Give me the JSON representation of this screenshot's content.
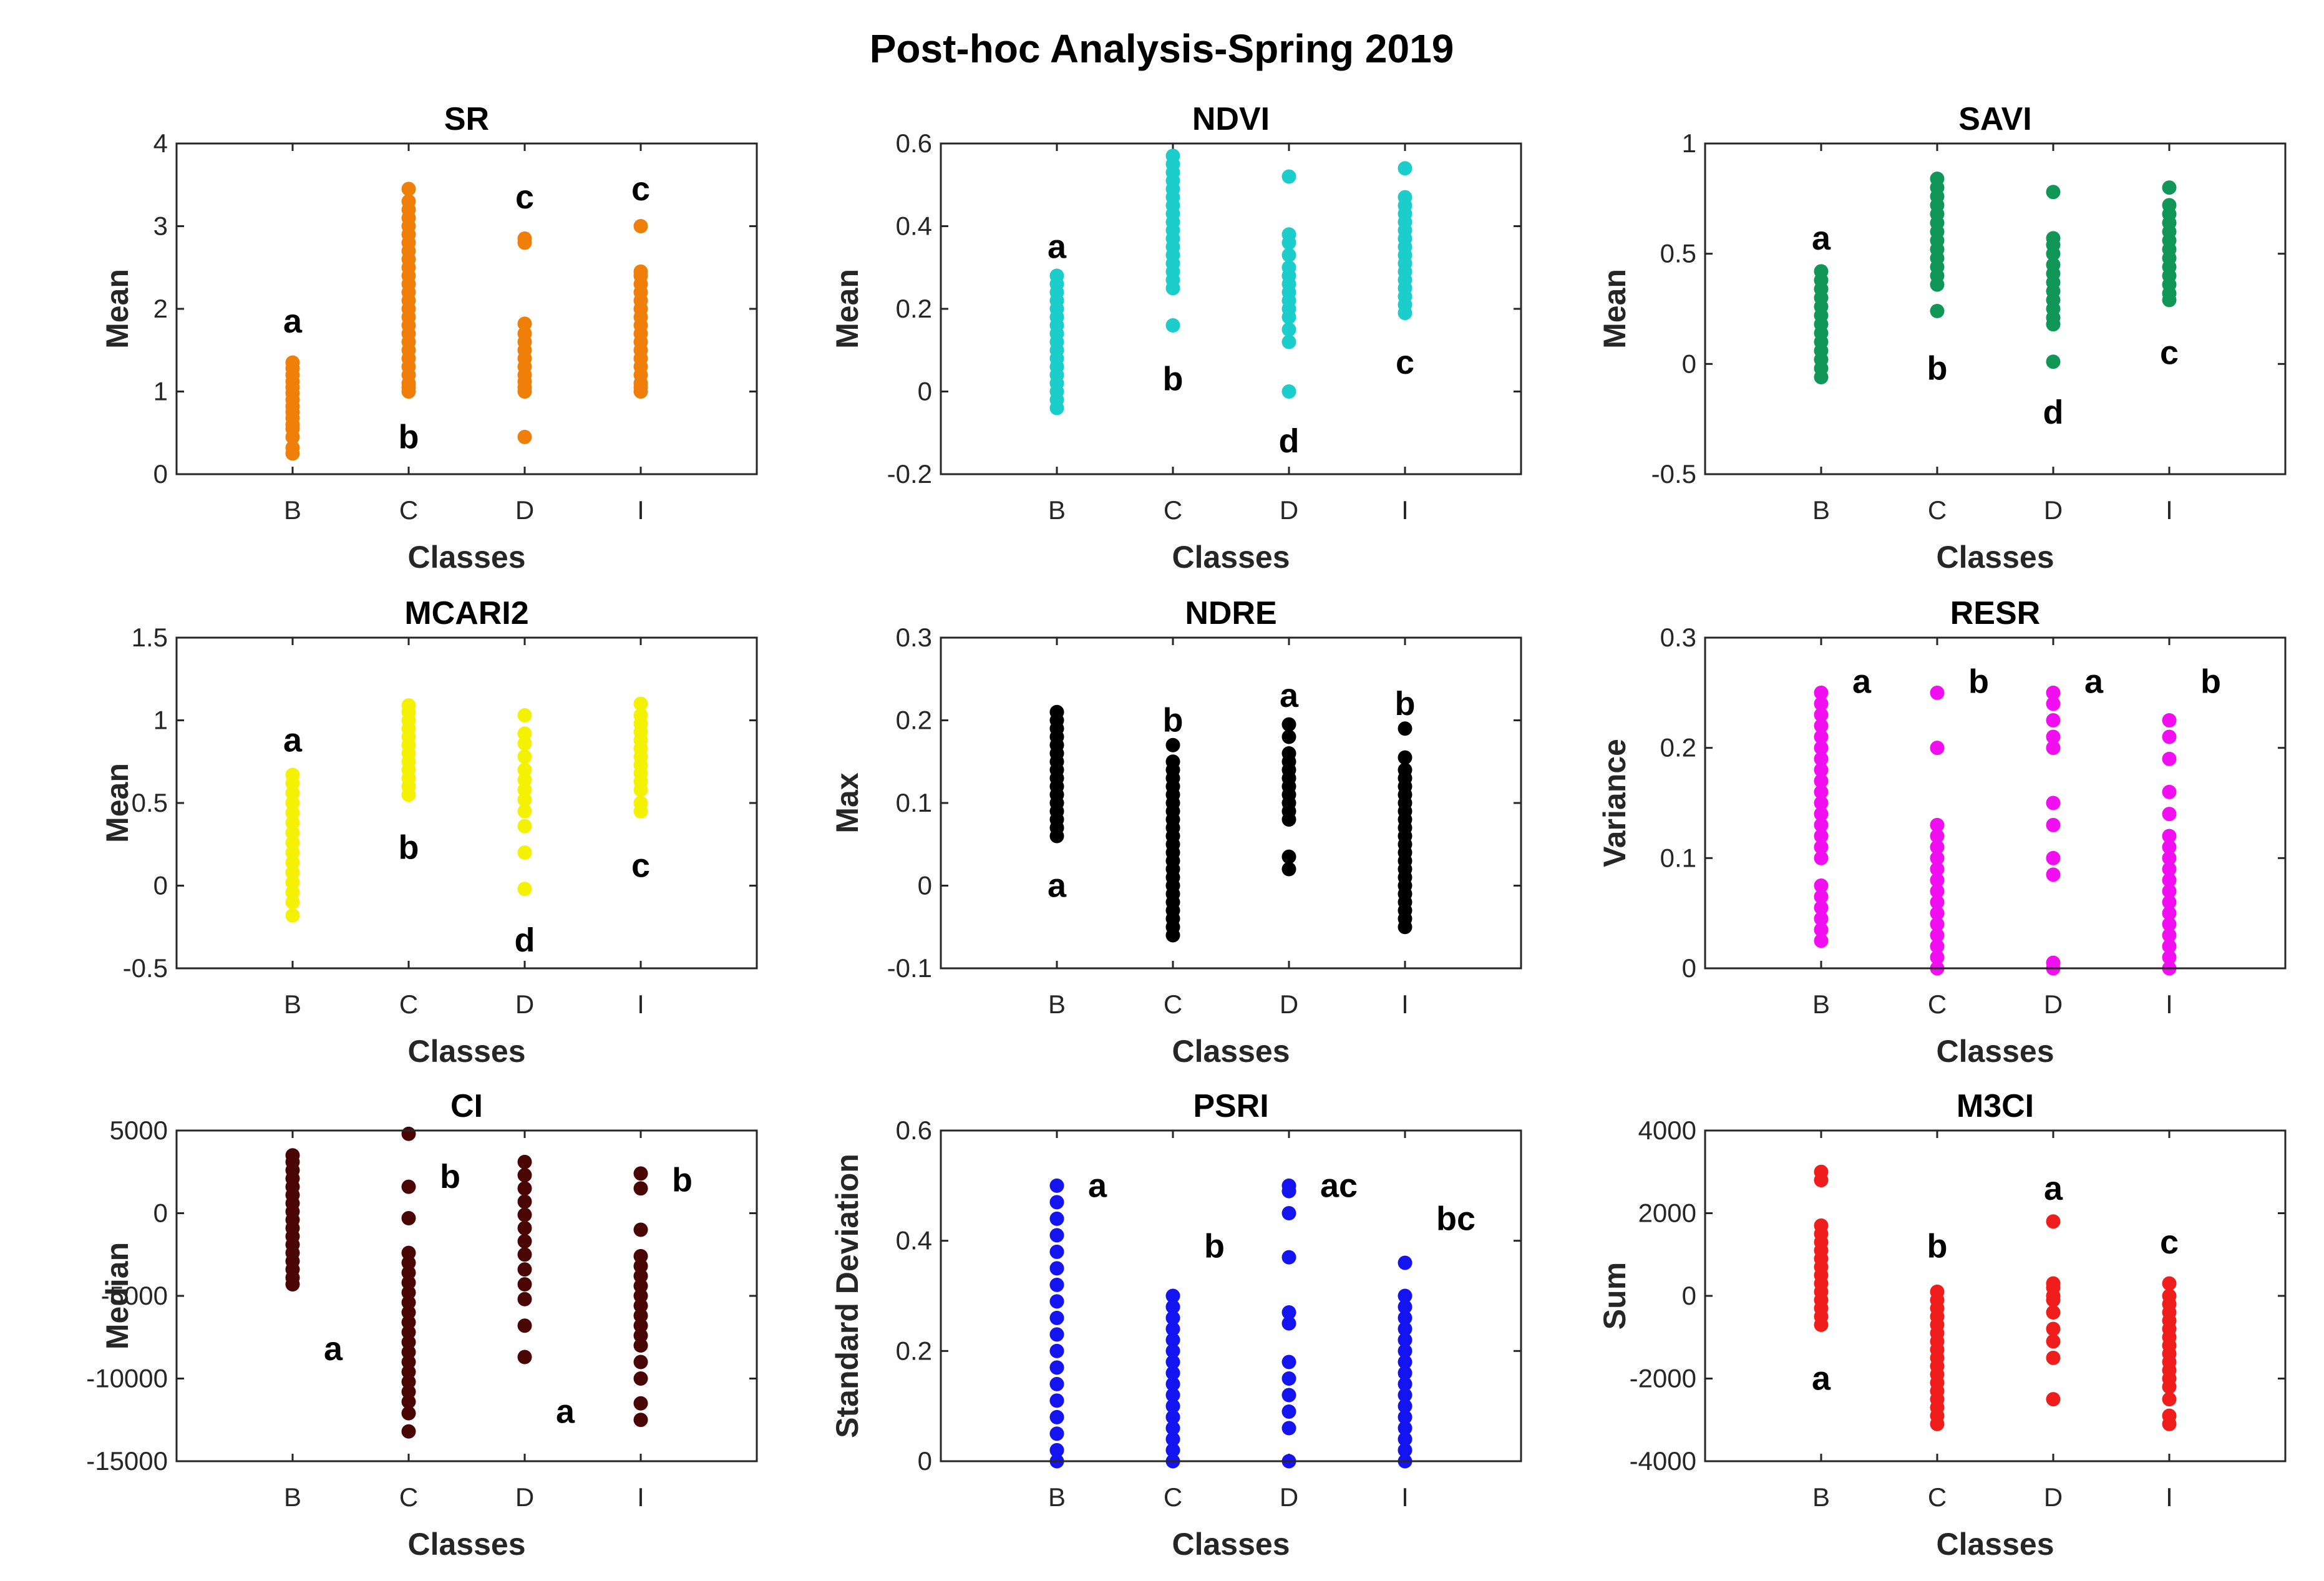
{
  "figure_title": "Post-hoc Analysis-Spring 2019",
  "chart_data": [
    {
      "type": "scatter",
      "title": "SR",
      "xlabel": "Classes",
      "ylabel": "Mean",
      "categories": [
        "B",
        "C",
        "D",
        "I"
      ],
      "ylim": [
        0,
        4
      ],
      "yticks": [
        0,
        1,
        2,
        3,
        4
      ],
      "color": "#f07f09",
      "series": [
        {
          "name": "B",
          "values": [
            0.25,
            0.32,
            0.45,
            0.55,
            0.6,
            0.68,
            0.75,
            0.82,
            0.9,
            0.98,
            1.05,
            1.12,
            1.2,
            1.28,
            1.35
          ]
        },
        {
          "name": "C",
          "values": [
            1.0,
            1.05,
            1.1,
            1.2,
            1.3,
            1.4,
            1.5,
            1.6,
            1.7,
            1.8,
            1.9,
            2.0,
            2.1,
            2.2,
            2.3,
            2.4,
            2.5,
            2.6,
            2.7,
            2.8,
            2.9,
            3.0,
            3.1,
            3.2,
            3.3,
            3.45
          ]
        },
        {
          "name": "D",
          "values": [
            0.45,
            1.0,
            1.05,
            1.12,
            1.2,
            1.3,
            1.4,
            1.5,
            1.6,
            1.7,
            1.82,
            2.8,
            2.85
          ]
        },
        {
          "name": "I",
          "values": [
            1.0,
            1.05,
            1.1,
            1.2,
            1.3,
            1.4,
            1.5,
            1.6,
            1.7,
            1.8,
            1.9,
            2.0,
            2.1,
            2.2,
            2.3,
            2.4,
            2.45,
            3.0
          ]
        }
      ],
      "annotations": [
        {
          "text": "a",
          "x": "B",
          "y": 1.85
        },
        {
          "text": "b",
          "x": "C",
          "y": 0.45
        },
        {
          "text": "c",
          "x": "D",
          "y": 3.35
        },
        {
          "text": "c",
          "x": "I",
          "y": 3.45
        }
      ]
    },
    {
      "type": "scatter",
      "title": "NDVI",
      "xlabel": "Classes",
      "ylabel": "Mean",
      "categories": [
        "B",
        "C",
        "D",
        "I"
      ],
      "ylim": [
        -0.2,
        0.6
      ],
      "yticks": [
        -0.2,
        0,
        0.2,
        0.4,
        0.6
      ],
      "color": "#1bcdcb",
      "series": [
        {
          "name": "B",
          "values": [
            -0.04,
            -0.02,
            0.0,
            0.02,
            0.04,
            0.06,
            0.08,
            0.1,
            0.12,
            0.14,
            0.16,
            0.18,
            0.2,
            0.22,
            0.24,
            0.26,
            0.28
          ]
        },
        {
          "name": "C",
          "values": [
            0.16,
            0.25,
            0.27,
            0.29,
            0.31,
            0.33,
            0.35,
            0.37,
            0.39,
            0.41,
            0.43,
            0.45,
            0.47,
            0.49,
            0.51,
            0.53,
            0.55,
            0.57
          ]
        },
        {
          "name": "D",
          "values": [
            0.0,
            0.12,
            0.15,
            0.18,
            0.2,
            0.22,
            0.24,
            0.26,
            0.28,
            0.3,
            0.33,
            0.36,
            0.38,
            0.52
          ]
        },
        {
          "name": "I",
          "values": [
            0.19,
            0.21,
            0.23,
            0.25,
            0.27,
            0.29,
            0.31,
            0.33,
            0.35,
            0.37,
            0.39,
            0.41,
            0.43,
            0.45,
            0.47,
            0.54
          ]
        }
      ],
      "annotations": [
        {
          "text": "a",
          "x": "B",
          "y": 0.35
        },
        {
          "text": "b",
          "x": "C",
          "y": 0.03
        },
        {
          "text": "d",
          "x": "D",
          "y": -0.12
        },
        {
          "text": "c",
          "x": "I",
          "y": 0.07
        }
      ]
    },
    {
      "type": "scatter",
      "title": "SAVI",
      "xlabel": "Classes",
      "ylabel": "Mean",
      "categories": [
        "B",
        "C",
        "D",
        "I"
      ],
      "ylim": [
        -0.5,
        1
      ],
      "yticks": [
        -0.5,
        0,
        0.5,
        1
      ],
      "color": "#109657",
      "series": [
        {
          "name": "B",
          "values": [
            -0.06,
            -0.02,
            0.02,
            0.06,
            0.1,
            0.14,
            0.18,
            0.22,
            0.26,
            0.3,
            0.34,
            0.38,
            0.42
          ]
        },
        {
          "name": "C",
          "values": [
            0.24,
            0.36,
            0.4,
            0.44,
            0.48,
            0.52,
            0.56,
            0.6,
            0.64,
            0.68,
            0.72,
            0.76,
            0.8,
            0.84
          ]
        },
        {
          "name": "D",
          "values": [
            0.01,
            0.18,
            0.21,
            0.25,
            0.29,
            0.33,
            0.37,
            0.41,
            0.45,
            0.5,
            0.54,
            0.57,
            0.78
          ]
        },
        {
          "name": "I",
          "values": [
            0.29,
            0.32,
            0.36,
            0.4,
            0.44,
            0.48,
            0.52,
            0.56,
            0.6,
            0.64,
            0.68,
            0.72,
            0.8
          ]
        }
      ],
      "annotations": [
        {
          "text": "a",
          "x": "B",
          "y": 0.57
        },
        {
          "text": "b",
          "x": "C",
          "y": -0.02
        },
        {
          "text": "d",
          "x": "D",
          "y": -0.22
        },
        {
          "text": "c",
          "x": "I",
          "y": 0.05
        }
      ]
    },
    {
      "type": "scatter",
      "title": "MCARI2",
      "xlabel": "Classes",
      "ylabel": "Mean",
      "categories": [
        "B",
        "C",
        "D",
        "I"
      ],
      "ylim": [
        -0.5,
        1.5
      ],
      "yticks": [
        -0.5,
        0,
        0.5,
        1,
        1.5
      ],
      "color": "#f4f200",
      "series": [
        {
          "name": "B",
          "values": [
            -0.18,
            -0.1,
            -0.04,
            0.02,
            0.08,
            0.14,
            0.2,
            0.26,
            0.32,
            0.38,
            0.44,
            0.5,
            0.56,
            0.62,
            0.67
          ]
        },
        {
          "name": "C",
          "values": [
            0.55,
            0.6,
            0.65,
            0.7,
            0.75,
            0.8,
            0.85,
            0.9,
            0.95,
            1.0,
            1.05,
            1.09
          ]
        },
        {
          "name": "D",
          "values": [
            -0.02,
            0.2,
            0.36,
            0.45,
            0.52,
            0.58,
            0.64,
            0.7,
            0.78,
            0.86,
            0.92,
            1.03
          ]
        },
        {
          "name": "I",
          "values": [
            0.45,
            0.5,
            0.58,
            0.63,
            0.68,
            0.73,
            0.78,
            0.83,
            0.88,
            0.93,
            0.98,
            1.03,
            1.1
          ]
        }
      ],
      "annotations": [
        {
          "text": "a",
          "x": "B",
          "y": 0.88
        },
        {
          "text": "b",
          "x": "C",
          "y": 0.23
        },
        {
          "text": "d",
          "x": "D",
          "y": -0.33
        },
        {
          "text": "c",
          "x": "I",
          "y": 0.12
        }
      ]
    },
    {
      "type": "scatter",
      "title": "NDRE",
      "xlabel": "Classes",
      "ylabel": "Max",
      "categories": [
        "B",
        "C",
        "D",
        "I"
      ],
      "ylim": [
        -0.1,
        0.3
      ],
      "yticks": [
        -0.1,
        0,
        0.1,
        0.2,
        0.3
      ],
      "color": "#000000",
      "series": [
        {
          "name": "B",
          "values": [
            0.06,
            0.07,
            0.08,
            0.09,
            0.1,
            0.11,
            0.12,
            0.13,
            0.14,
            0.15,
            0.16,
            0.17,
            0.18,
            0.19,
            0.2,
            0.21
          ]
        },
        {
          "name": "C",
          "values": [
            -0.06,
            -0.05,
            -0.04,
            -0.03,
            -0.02,
            -0.01,
            0.0,
            0.01,
            0.02,
            0.03,
            0.04,
            0.05,
            0.06,
            0.07,
            0.08,
            0.09,
            0.1,
            0.11,
            0.12,
            0.13,
            0.14,
            0.15,
            0.17
          ]
        },
        {
          "name": "D",
          "values": [
            0.02,
            0.035,
            0.08,
            0.09,
            0.1,
            0.11,
            0.12,
            0.13,
            0.14,
            0.15,
            0.16,
            0.18,
            0.195
          ]
        },
        {
          "name": "I",
          "values": [
            -0.05,
            -0.04,
            -0.03,
            -0.02,
            -0.01,
            0.0,
            0.01,
            0.02,
            0.03,
            0.04,
            0.05,
            0.06,
            0.07,
            0.08,
            0.09,
            0.1,
            0.11,
            0.12,
            0.13,
            0.14,
            0.155,
            0.19
          ]
        }
      ],
      "annotations": [
        {
          "text": "a",
          "x": "B",
          "y": 0.0
        },
        {
          "text": "b",
          "x": "C",
          "y": 0.2
        },
        {
          "text": "a",
          "x": "D",
          "y": 0.23
        },
        {
          "text": "b",
          "x": "I",
          "y": 0.22
        }
      ]
    },
    {
      "type": "scatter",
      "title": "RESR",
      "xlabel": "Classes",
      "ylabel": "Variance",
      "categories": [
        "B",
        "C",
        "D",
        "I"
      ],
      "ylim": [
        0,
        0.3
      ],
      "yticks": [
        0,
        0.1,
        0.2,
        0.3
      ],
      "color": "#f10ff1",
      "series": [
        {
          "name": "B",
          "values": [
            0.025,
            0.035,
            0.045,
            0.055,
            0.065,
            0.075,
            0.1,
            0.11,
            0.12,
            0.13,
            0.14,
            0.15,
            0.16,
            0.17,
            0.18,
            0.19,
            0.2,
            0.21,
            0.22,
            0.23,
            0.24,
            0.25
          ]
        },
        {
          "name": "C",
          "values": [
            0.0,
            0.01,
            0.02,
            0.03,
            0.04,
            0.05,
            0.06,
            0.07,
            0.08,
            0.09,
            0.1,
            0.11,
            0.12,
            0.13,
            0.2,
            0.25
          ]
        },
        {
          "name": "D",
          "values": [
            0.0,
            0.005,
            0.085,
            0.1,
            0.13,
            0.15,
            0.2,
            0.21,
            0.225,
            0.24,
            0.25
          ]
        },
        {
          "name": "I",
          "values": [
            0.0,
            0.01,
            0.02,
            0.03,
            0.04,
            0.05,
            0.06,
            0.07,
            0.08,
            0.09,
            0.1,
            0.11,
            0.12,
            0.14,
            0.16,
            0.19,
            0.21,
            0.225
          ]
        }
      ],
      "annotations": [
        {
          "text": "a",
          "x": "B",
          "y": 0.26
        },
        {
          "text": "b",
          "x": "C",
          "y": 0.26
        },
        {
          "text": "a",
          "x": "D",
          "y": 0.26
        },
        {
          "text": "b",
          "x": "I",
          "y": 0.26
        }
      ]
    },
    {
      "type": "scatter",
      "title": "CI",
      "xlabel": "Classes",
      "ylabel": "Median",
      "categories": [
        "B",
        "C",
        "D",
        "I"
      ],
      "ylim": [
        -15000,
        5000
      ],
      "yticks": [
        -15000,
        -10000,
        -5000,
        0,
        5000
      ],
      "color": "#4a0505",
      "series": [
        {
          "name": "B",
          "values": [
            -4300,
            -3900,
            -3400,
            -2900,
            -2400,
            -1900,
            -1400,
            -900,
            -400,
            100,
            600,
            1100,
            1600,
            2100,
            2600,
            3100,
            3500
          ]
        },
        {
          "name": "C",
          "values": [
            -13200,
            -12100,
            -11400,
            -10800,
            -10200,
            -9600,
            -9000,
            -8400,
            -7800,
            -7200,
            -6600,
            -6000,
            -5400,
            -4800,
            -4200,
            -3600,
            -3000,
            -2400,
            -300,
            1600,
            4800
          ]
        },
        {
          "name": "D",
          "values": [
            -8700,
            -6800,
            -5200,
            -4300,
            -3400,
            -2500,
            -1700,
            -900,
            -100,
            700,
            1500,
            2300,
            3100
          ]
        },
        {
          "name": "I",
          "values": [
            -12500,
            -11500,
            -10000,
            -9000,
            -8000,
            -7400,
            -6800,
            -6200,
            -5600,
            -5000,
            -4400,
            -3800,
            -3200,
            -2600,
            -1000,
            1500,
            2400
          ]
        }
      ],
      "annotations": [
        {
          "text": "a",
          "x": "B",
          "y": -8200
        },
        {
          "text": "b",
          "x": "C",
          "y": 2200
        },
        {
          "text": "a",
          "x": "D",
          "y": -12000
        },
        {
          "text": "b",
          "x": "I",
          "y": 2000
        }
      ]
    },
    {
      "type": "scatter",
      "title": "PSRI",
      "xlabel": "Classes",
      "ylabel": "Standard Deviation",
      "categories": [
        "B",
        "C",
        "D",
        "I"
      ],
      "ylim": [
        0,
        0.6
      ],
      "yticks": [
        0,
        0.2,
        0.4,
        0.6
      ],
      "color": "#1414f0",
      "series": [
        {
          "name": "B",
          "values": [
            0.0,
            0.02,
            0.05,
            0.08,
            0.11,
            0.14,
            0.17,
            0.2,
            0.23,
            0.26,
            0.29,
            0.32,
            0.35,
            0.38,
            0.41,
            0.44,
            0.47,
            0.5
          ]
        },
        {
          "name": "C",
          "values": [
            0.0,
            0.02,
            0.04,
            0.06,
            0.08,
            0.1,
            0.12,
            0.14,
            0.16,
            0.18,
            0.2,
            0.22,
            0.24,
            0.26,
            0.28,
            0.3
          ]
        },
        {
          "name": "D",
          "values": [
            0.0,
            0.06,
            0.09,
            0.12,
            0.15,
            0.18,
            0.25,
            0.27,
            0.37,
            0.45,
            0.49,
            0.5
          ]
        },
        {
          "name": "I",
          "values": [
            0.0,
            0.02,
            0.04,
            0.06,
            0.08,
            0.1,
            0.12,
            0.14,
            0.16,
            0.18,
            0.2,
            0.22,
            0.24,
            0.26,
            0.28,
            0.3,
            0.36
          ]
        }
      ],
      "annotations": [
        {
          "text": "a",
          "x": "B",
          "y": 0.5
        },
        {
          "text": "b",
          "x": "C",
          "y": 0.39
        },
        {
          "text": "ac",
          "x": "D",
          "y": 0.5
        },
        {
          "text": "bc",
          "x": "I",
          "y": 0.44
        }
      ]
    },
    {
      "type": "scatter",
      "title": "M3CI",
      "xlabel": "Classes",
      "ylabel": "Sum",
      "categories": [
        "B",
        "C",
        "D",
        "I"
      ],
      "ylim": [
        -4000,
        4000
      ],
      "yticks": [
        -4000,
        -2000,
        0,
        2000,
        4000
      ],
      "color": "#f01d1d",
      "series": [
        {
          "name": "B",
          "values": [
            -700,
            -500,
            -300,
            -100,
            100,
            300,
            500,
            700,
            900,
            1100,
            1300,
            1500,
            1700,
            2800,
            3000
          ]
        },
        {
          "name": "C",
          "values": [
            -3100,
            -2900,
            -2700,
            -2500,
            -2300,
            -2100,
            -1900,
            -1700,
            -1500,
            -1300,
            -1100,
            -900,
            -700,
            -500,
            -300,
            -100,
            100
          ]
        },
        {
          "name": "D",
          "values": [
            -2500,
            -1500,
            -1100,
            -800,
            -400,
            -100,
            0,
            200,
            300,
            1800
          ]
        },
        {
          "name": "I",
          "values": [
            -3100,
            -2900,
            -2500,
            -2200,
            -2000,
            -1800,
            -1600,
            -1400,
            -1200,
            -1000,
            -800,
            -600,
            -400,
            -200,
            0,
            300
          ]
        }
      ],
      "annotations": [
        {
          "text": "a",
          "x": "B",
          "y": -2000
        },
        {
          "text": "b",
          "x": "C",
          "y": 1200
        },
        {
          "text": "a",
          "x": "D",
          "y": 2600
        },
        {
          "text": "c",
          "x": "I",
          "y": 1300
        }
      ]
    }
  ]
}
